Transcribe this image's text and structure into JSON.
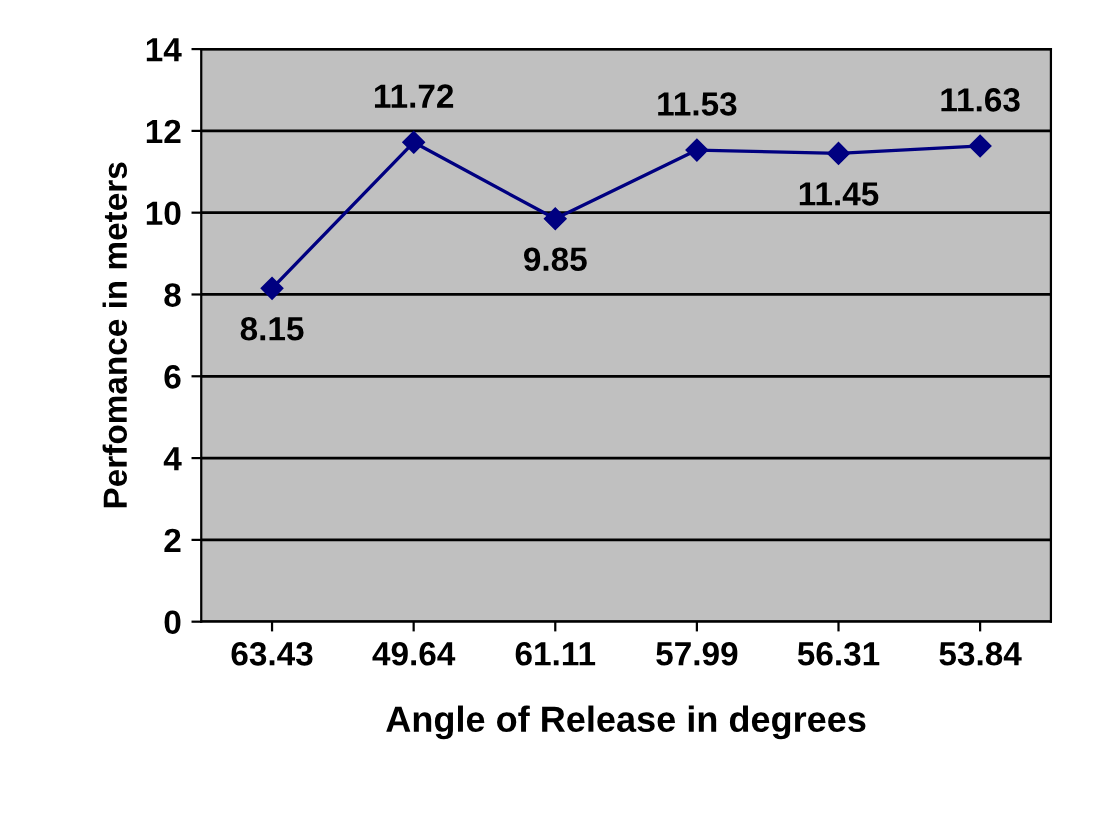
{
  "chart_data": {
    "type": "line",
    "xlabel": "Angle of Release in degrees",
    "ylabel": "Perfomance in meters",
    "categories": [
      "63.43",
      "49.64",
      "61.11",
      "57.99",
      "56.31",
      "53.84"
    ],
    "series": [
      {
        "color": "#000080",
        "values": [
          8.15,
          11.72,
          9.85,
          11.53,
          11.45,
          11.63
        ]
      }
    ],
    "ylim": [
      0,
      14
    ],
    "yticks": [
      0,
      2,
      4,
      6,
      8,
      10,
      12,
      14
    ],
    "grid": "y",
    "marker": "diamond",
    "line_style": "solid",
    "data_labels": true,
    "legend": false
  }
}
